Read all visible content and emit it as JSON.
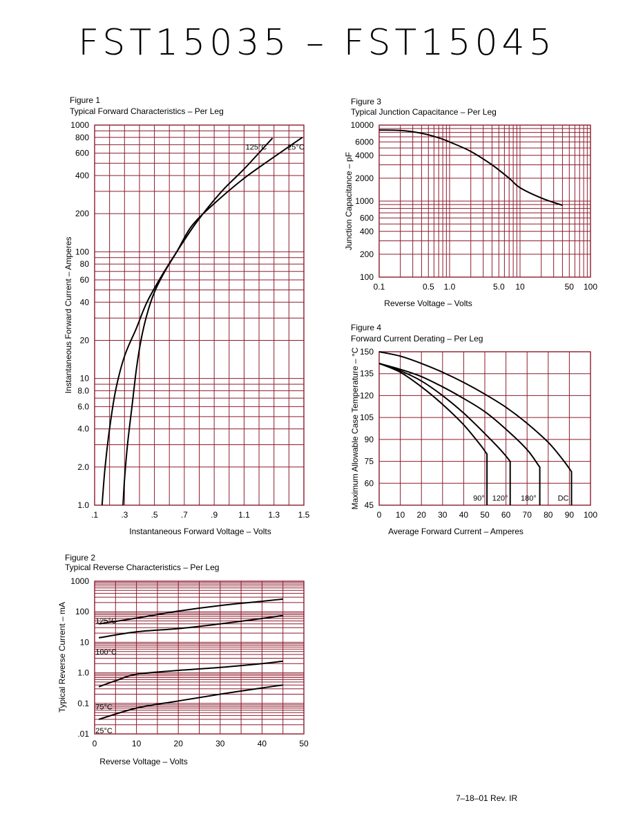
{
  "page": {
    "title": "FST15035  –  FST15045",
    "footer": "7–18–01    Rev. IR"
  },
  "colors": {
    "grid": "#8b1a2b",
    "curve": "#000000",
    "background": "#ffffff"
  },
  "figures": {
    "fig1": {
      "number": "Figure 1",
      "caption": "Typical Forward Characteristics – Per Leg"
    },
    "fig2": {
      "number": "Figure 2",
      "caption": "Typical Reverse Characteristics – Per Leg"
    },
    "fig3": {
      "number": "Figure 3",
      "caption": "Typical Junction Capacitance – Per Leg"
    },
    "fig4": {
      "number": "Figure 4",
      "caption": "Forward Current Derating – Per Leg"
    }
  },
  "chart_data": [
    {
      "id": "fig1",
      "type": "line",
      "title": "Typical Forward Characteristics – Per Leg",
      "xlabel": "Instantaneous Forward Voltage – Volts",
      "ylabel": "Instantaneous Forward Current – Amperes",
      "x_scale": "linear",
      "y_scale": "log",
      "xlim": [
        0.1,
        1.5
      ],
      "ylim": [
        1,
        1000
      ],
      "x_tick_labels": [
        ".1",
        ".3",
        ".5",
        ".7",
        ".9",
        "1.1",
        "1.3",
        "1.5"
      ],
      "x_ticks": [
        0.1,
        0.3,
        0.5,
        0.7,
        0.9,
        1.1,
        1.3,
        1.5
      ],
      "y_tick_labels": [
        "1.0",
        "2.0",
        "4.0",
        "6.0",
        "8.0",
        "10",
        "20",
        "40",
        "60",
        "80",
        "100",
        "200",
        "400",
        "600",
        "800",
        "1000"
      ],
      "y_ticks": [
        1,
        2,
        4,
        6,
        8,
        10,
        20,
        40,
        60,
        80,
        100,
        200,
        400,
        600,
        800,
        1000
      ],
      "grid": true,
      "series": [
        {
          "name": "125°C",
          "label_at": [
            1.11,
            640
          ],
          "points": [
            [
              0.15,
              1.0
            ],
            [
              0.17,
              2.0
            ],
            [
              0.2,
              4.0
            ],
            [
              0.24,
              8.0
            ],
            [
              0.3,
              15
            ],
            [
              0.38,
              25
            ],
            [
              0.45,
              40
            ],
            [
              0.55,
              65
            ],
            [
              0.65,
              100
            ],
            [
              0.78,
              170
            ],
            [
              0.95,
              300
            ],
            [
              1.1,
              450
            ],
            [
              1.29,
              790
            ]
          ]
        },
        {
          "name": "25°C",
          "label_at": [
            1.39,
            640
          ],
          "points": [
            [
              0.29,
              1.0
            ],
            [
              0.3,
              1.6
            ],
            [
              0.32,
              3.0
            ],
            [
              0.35,
              6.0
            ],
            [
              0.38,
              12
            ],
            [
              0.41,
              20
            ],
            [
              0.45,
              32
            ],
            [
              0.5,
              48
            ],
            [
              0.57,
              70
            ],
            [
              0.65,
              100
            ],
            [
              0.75,
              160
            ],
            [
              0.9,
              240
            ],
            [
              1.1,
              380
            ],
            [
              1.3,
              560
            ],
            [
              1.49,
              800
            ]
          ]
        }
      ]
    },
    {
      "id": "fig2",
      "type": "line",
      "title": "Typical Reverse Characteristics – Per Leg",
      "xlabel": "Reverse Voltage – Volts",
      "ylabel": "Typical Reverse Current – mA",
      "x_scale": "linear",
      "y_scale": "log",
      "xlim": [
        0,
        50
      ],
      "ylim": [
        0.01,
        1000
      ],
      "x_tick_labels": [
        "0",
        "10",
        "20",
        "30",
        "40",
        "50"
      ],
      "x_ticks": [
        0,
        10,
        20,
        30,
        40,
        50
      ],
      "y_tick_labels": [
        ".01",
        "0.1",
        "1.0",
        "10",
        "100",
        "1000"
      ],
      "y_ticks": [
        0.01,
        0.1,
        1,
        10,
        100,
        1000
      ],
      "grid": true,
      "series": [
        {
          "name": "125°C",
          "label_at": [
            0.2,
            42
          ],
          "points": [
            [
              1,
              40
            ],
            [
              10,
              62
            ],
            [
              20,
              105
            ],
            [
              30,
              160
            ],
            [
              40,
              220
            ],
            [
              45,
              260
            ]
          ]
        },
        {
          "name": "100°C",
          "label_at": [
            0.2,
            4.0
          ],
          "points": [
            [
              1,
              14
            ],
            [
              10,
              22
            ],
            [
              20,
              28
            ],
            [
              30,
              40
            ],
            [
              40,
              60
            ],
            [
              45,
              75
            ]
          ]
        },
        {
          "name": "75°C",
          "label_at": [
            0.2,
            0.064
          ],
          "points": [
            [
              1,
              0.35
            ],
            [
              5,
              0.55
            ],
            [
              10,
              0.9
            ],
            [
              20,
              1.2
            ],
            [
              30,
              1.5
            ],
            [
              40,
              2.0
            ],
            [
              45,
              2.4
            ]
          ]
        },
        {
          "name": "25°C",
          "label_at": [
            0.2,
            0.0105
          ],
          "points": [
            [
              1,
              0.03
            ],
            [
              10,
              0.07
            ],
            [
              20,
              0.12
            ],
            [
              30,
              0.2
            ],
            [
              40,
              0.32
            ],
            [
              45,
              0.4
            ]
          ]
        }
      ]
    },
    {
      "id": "fig3",
      "type": "line",
      "title": "Typical Junction Capacitance – Per Leg",
      "xlabel": "Reverse Voltage – Volts",
      "ylabel": "Junction Capacitance – pF",
      "x_scale": "log",
      "y_scale": "log",
      "xlim": [
        0.1,
        100
      ],
      "ylim": [
        100,
        10000
      ],
      "x_tick_labels": [
        "0.1",
        "0.5",
        "1.0",
        "5.0",
        "10",
        "50",
        "100"
      ],
      "x_ticks": [
        0.1,
        0.5,
        1,
        5,
        10,
        50,
        100
      ],
      "y_tick_labels": [
        "100",
        "200",
        "400",
        "600",
        "1000",
        "2000",
        "4000",
        "6000",
        "10000"
      ],
      "y_ticks": [
        100,
        200,
        400,
        600,
        1000,
        2000,
        4000,
        6000,
        10000
      ],
      "grid": true,
      "series": [
        {
          "name": "",
          "points": [
            [
              0.1,
              8600
            ],
            [
              0.2,
              8500
            ],
            [
              0.4,
              7800
            ],
            [
              0.7,
              6800
            ],
            [
              1.0,
              6000
            ],
            [
              2,
              4500
            ],
            [
              4,
              3000
            ],
            [
              7,
              2000
            ],
            [
              10,
              1500
            ],
            [
              20,
              1100
            ],
            [
              40,
              880
            ]
          ]
        }
      ]
    },
    {
      "id": "fig4",
      "type": "line",
      "title": "Forward Current Derating – Per Leg",
      "xlabel": "Average Forward Current – Amperes",
      "ylabel": "Maximum Allowable Case Temperature – °C",
      "x_scale": "linear",
      "y_scale": "linear",
      "xlim": [
        0,
        100
      ],
      "ylim": [
        45,
        150
      ],
      "x_tick_labels": [
        "0",
        "10",
        "20",
        "30",
        "40",
        "50",
        "60",
        "70",
        "80",
        "90",
        "100"
      ],
      "x_ticks": [
        0,
        10,
        20,
        30,
        40,
        50,
        60,
        70,
        80,
        90,
        100
      ],
      "y_tick_labels": [
        "45",
        "60",
        "75",
        "90",
        "105",
        "120",
        "135",
        "150"
      ],
      "y_ticks": [
        45,
        60,
        75,
        90,
        105,
        120,
        135,
        150
      ],
      "grid": true,
      "series": [
        {
          "name": "90°",
          "label_at": [
            44.5,
            48
          ],
          "points": [
            [
              0,
              142
            ],
            [
              10,
              136
            ],
            [
              20,
              126
            ],
            [
              30,
              114
            ],
            [
              40,
              100
            ],
            [
              48,
              86
            ],
            [
              51,
              80
            ],
            [
              51,
              45
            ]
          ]
        },
        {
          "name": "120°",
          "label_at": [
            53.5,
            48
          ],
          "points": [
            [
              0,
              142
            ],
            [
              10,
              137
            ],
            [
              20,
              130
            ],
            [
              30,
              120
            ],
            [
              40,
              108
            ],
            [
              50,
              94
            ],
            [
              58,
              82
            ],
            [
              62,
              75
            ],
            [
              62,
              45
            ]
          ]
        },
        {
          "name": "180°",
          "label_at": [
            67,
            48
          ],
          "points": [
            [
              0,
              142
            ],
            [
              10,
              138
            ],
            [
              20,
              133
            ],
            [
              30,
              126
            ],
            [
              40,
              118
            ],
            [
              50,
              109
            ],
            [
              60,
              97
            ],
            [
              70,
              83
            ],
            [
              76,
              71
            ],
            [
              76,
              45
            ]
          ]
        },
        {
          "name": "DC",
          "label_at": [
            84.5,
            48
          ],
          "points": [
            [
              0,
              150
            ],
            [
              10,
              147
            ],
            [
              20,
              142
            ],
            [
              30,
              136
            ],
            [
              40,
              129
            ],
            [
              50,
              121
            ],
            [
              60,
              112
            ],
            [
              70,
              101
            ],
            [
              80,
              88
            ],
            [
              87,
              76
            ],
            [
              91,
              68
            ],
            [
              91,
              45
            ]
          ]
        }
      ]
    }
  ]
}
